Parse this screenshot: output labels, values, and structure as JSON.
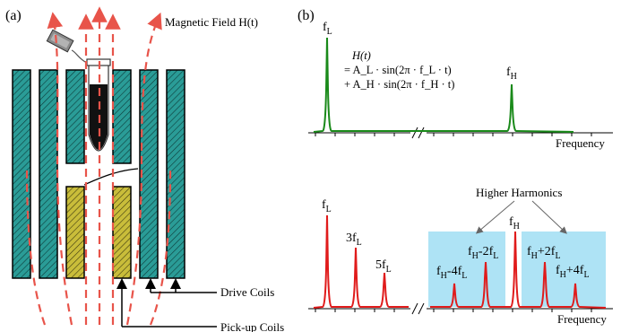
{
  "colors": {
    "coil_green": "#2a9c97",
    "coil_yellow": "#c9bd3a",
    "field_red": "#e8544a",
    "spectrum_green": "#1a8a1a",
    "spectrum_red": "#e01b1b",
    "harmonic_box": "#aee3f5"
  },
  "panel_a": {
    "label": "(a)",
    "field_label": "Magnetic Field H(t)",
    "drive_coils_label": "Drive Coils",
    "pickup_coils_label": "Pick-up Coils"
  },
  "panel_b": {
    "label": "(b)",
    "top": {
      "peak_low": {
        "base": "f",
        "sub": "L"
      },
      "peak_high": {
        "base": "f",
        "sub": "H"
      },
      "equation": {
        "line1": "H(t)",
        "line2": "= A_L · sin(2π · f_L · t)",
        "line3": "+ A_H · sin(2π · f_H · t)"
      },
      "x_label": "Frequency"
    },
    "bottom": {
      "title": "Higher Harmonics",
      "peaks": [
        {
          "base": "f",
          "sub": "L"
        },
        {
          "base": "3f",
          "sub": "L"
        },
        {
          "base": "5f",
          "sub": "L"
        },
        {
          "base": "f",
          "sub": "H"
        },
        {
          "base": "f",
          "sub": "H",
          "rest": "-4f",
          "sub2": "L"
        },
        {
          "base": "f",
          "sub": "H",
          "rest": "-2f",
          "sub2": "L"
        },
        {
          "base": "f",
          "sub": "H",
          "rest": "+2f",
          "sub2": "L"
        },
        {
          "base": "f",
          "sub": "H",
          "rest": "+4f",
          "sub2": "L"
        }
      ],
      "x_label": "Frequency"
    }
  }
}
